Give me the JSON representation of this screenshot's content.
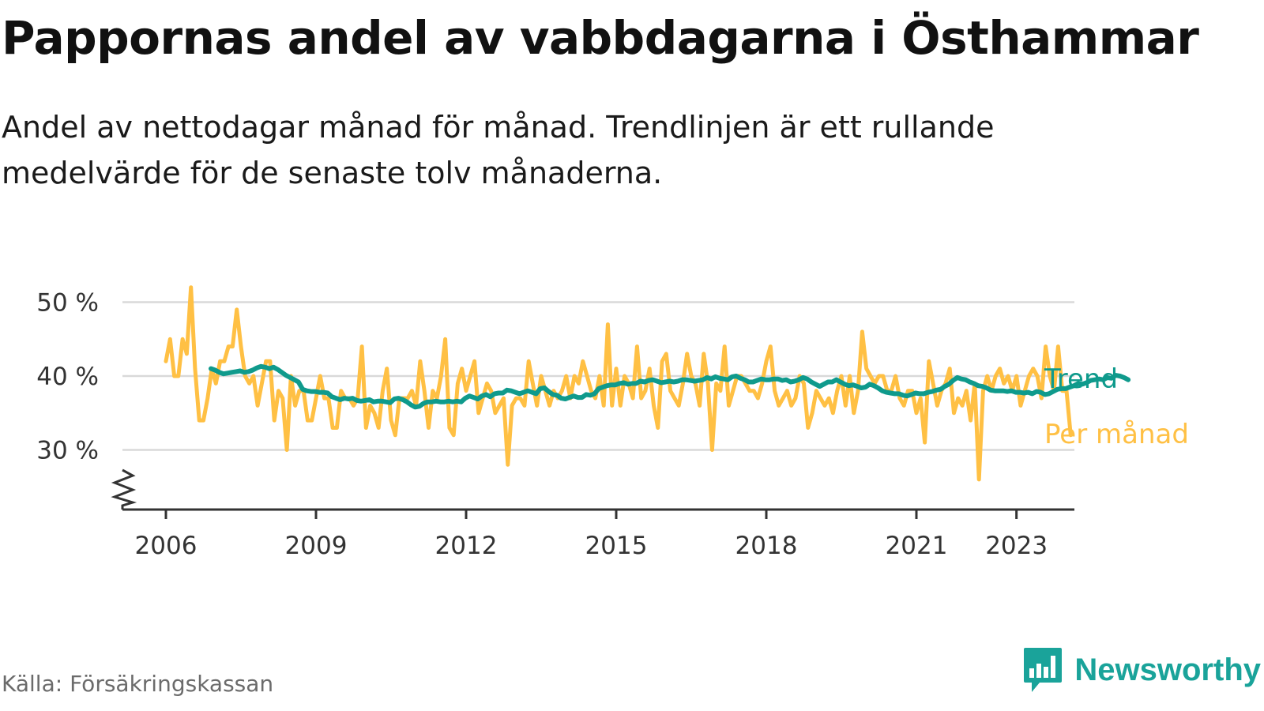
{
  "title": "Pappornas andel av vabbdagarna i Östhammar",
  "subtitle": "Andel av nettodagar månad för månad. Trendlinjen är ett rullande medelvärde för de senaste tolv månaderna.",
  "source": "Källa: Försäkringskassan",
  "brand": {
    "name": "Newsworthy",
    "icon": "bar-chart-pin-icon"
  },
  "colors": {
    "trend": "#0f9a8c",
    "monthly": "#ffc044",
    "grid": "#d9d9d9",
    "axis": "#333333",
    "brand": "#1aa39a"
  },
  "chart_data": {
    "type": "line",
    "x_unit": "year (fractional)",
    "xlim": [
      2006,
      2023.6
    ],
    "ylim": [
      22,
      52
    ],
    "y_ticks": [
      {
        "value": 30,
        "label": "30 %"
      },
      {
        "value": 40,
        "label": "40 %"
      },
      {
        "value": 50,
        "label": "50 %"
      }
    ],
    "x_ticks": [
      {
        "value": 2006,
        "label": "2006"
      },
      {
        "value": 2009,
        "label": "2009"
      },
      {
        "value": 2012,
        "label": "2012"
      },
      {
        "value": 2015,
        "label": "2015"
      },
      {
        "value": 2018,
        "label": "2018"
      },
      {
        "value": 2021,
        "label": "2021"
      },
      {
        "value": 2023,
        "label": "2023"
      }
    ],
    "axis_break": true,
    "grid": true,
    "series": [
      {
        "name": "Per månad",
        "label": "Per månad",
        "start": 2006.0,
        "step_months": 1,
        "values": [
          42,
          45,
          40,
          40,
          45,
          43,
          52,
          41,
          34,
          34,
          37,
          41,
          39,
          42,
          42,
          44,
          44,
          49,
          44,
          40,
          39,
          40,
          36,
          39,
          42,
          42,
          34,
          38,
          37,
          30,
          40,
          36,
          38,
          38,
          34,
          34,
          37,
          40,
          37,
          37,
          33,
          33,
          38,
          37,
          37,
          36,
          37,
          44,
          33,
          36,
          35,
          33,
          38,
          41,
          34,
          32,
          37,
          37,
          37,
          38,
          36,
          42,
          38,
          33,
          38,
          37,
          40,
          45,
          33,
          32,
          39,
          41,
          38,
          40,
          42,
          35,
          37,
          39,
          38,
          35,
          36,
          37,
          28,
          36,
          37,
          37,
          36,
          42,
          39,
          36,
          40,
          38,
          36,
          38,
          37,
          38,
          40,
          37,
          40,
          39,
          42,
          40,
          38,
          37,
          40,
          36,
          47,
          36,
          41,
          36,
          40,
          39,
          37,
          44,
          37,
          38,
          41,
          36,
          33,
          42,
          43,
          38,
          37,
          36,
          39,
          43,
          40,
          39,
          36,
          43,
          39,
          30,
          39,
          38,
          44,
          36,
          38,
          40,
          40,
          39,
          38,
          38,
          37,
          39,
          42,
          44,
          38,
          36,
          37,
          38,
          36,
          37,
          40,
          39,
          33,
          35,
          38,
          37,
          36,
          37,
          35,
          38,
          40,
          36,
          40,
          35,
          38,
          46,
          41,
          40,
          39,
          40,
          40,
          38,
          38,
          40,
          37,
          36,
          38,
          38,
          35,
          37,
          31,
          42,
          39,
          36,
          38,
          39,
          41,
          35,
          37,
          36,
          38,
          34,
          39,
          26,
          38,
          40,
          38,
          40,
          41,
          39,
          40,
          38,
          40,
          36,
          38,
          40,
          41,
          40,
          37,
          44,
          40,
          38,
          44,
          38,
          38,
          32
        ],
        "end_label": "Per månad"
      },
      {
        "name": "Trend",
        "label": "Trend",
        "start": 2006.9,
        "step_months": 1,
        "values": [
          41,
          40.8,
          40.5,
          40.3,
          40.4,
          40.5,
          40.6,
          40.7,
          40.5,
          40.6,
          40.8,
          41.1,
          41.3,
          41.2,
          41,
          41.2,
          40.9,
          40.5,
          40.1,
          39.8,
          39.5,
          39.2,
          38.2,
          38,
          37.9,
          37.9,
          37.8,
          37.8,
          37.7,
          37.2,
          37,
          36.8,
          37,
          36.9,
          37,
          36.7,
          36.6,
          36.7,
          36.8,
          36.5,
          36.6,
          36.6,
          36.5,
          36.4,
          36.9,
          37,
          36.8,
          36.5,
          36.1,
          35.8,
          35.9,
          36.3,
          36.5,
          36.5,
          36.6,
          36.5,
          36.5,
          36.6,
          36.5,
          36.6,
          36.5,
          37,
          37.3,
          37.1,
          36.9,
          37.3,
          37.5,
          37.2,
          37.6,
          37.7,
          37.7,
          38.1,
          38,
          37.8,
          37.6,
          37.8,
          38,
          37.8,
          37.6,
          38.3,
          38.4,
          37.9,
          37.5,
          37.4,
          37,
          36.9,
          37.1,
          37.3,
          37.1,
          37.1,
          37.5,
          37.4,
          37.6,
          38.3,
          38.5,
          38.7,
          38.8,
          38.8,
          39,
          39.1,
          38.9,
          39,
          39,
          39.3,
          39.2,
          39.4,
          39.5,
          39.3,
          39.1,
          39.2,
          39.3,
          39.2,
          39.3,
          39.5,
          39.5,
          39.4,
          39.3,
          39.4,
          39.5,
          39.8,
          39.6,
          39.9,
          39.7,
          39.6,
          39.5,
          39.9,
          40,
          39.7,
          39.5,
          39.2,
          39.2,
          39.4,
          39.6,
          39.5,
          39.5,
          39.6,
          39.6,
          39.4,
          39.5,
          39.2,
          39.3,
          39.5,
          39.8,
          39.6,
          39.2,
          38.9,
          38.6,
          38.9,
          39.2,
          39.2,
          39.5,
          39.2,
          38.9,
          38.7,
          38.8,
          38.6,
          38.4,
          38.5,
          38.9,
          38.7,
          38.4,
          38,
          37.8,
          37.7,
          37.6,
          37.6,
          37.4,
          37.3,
          37.5,
          37.7,
          37.6,
          37.6,
          37.8,
          37.9,
          38.1,
          38.2,
          38.6,
          38.9,
          39.4,
          39.8,
          39.6,
          39.5,
          39.2,
          39,
          38.7,
          38.6,
          38.4,
          38.1,
          38,
          38,
          38,
          37.9,
          38,
          37.8,
          37.8,
          37.7,
          37.8,
          37.6,
          37.9,
          37.8,
          37.5,
          37.6,
          37.9,
          38.2,
          38.3,
          38.3,
          38.5,
          38.7,
          39,
          38.9,
          39.1,
          39.4,
          39.5,
          39.6,
          39.5,
          39.8,
          39.7,
          40.1,
          40,
          39.8,
          39.5
        ],
        "end_label": "Trend"
      }
    ]
  }
}
